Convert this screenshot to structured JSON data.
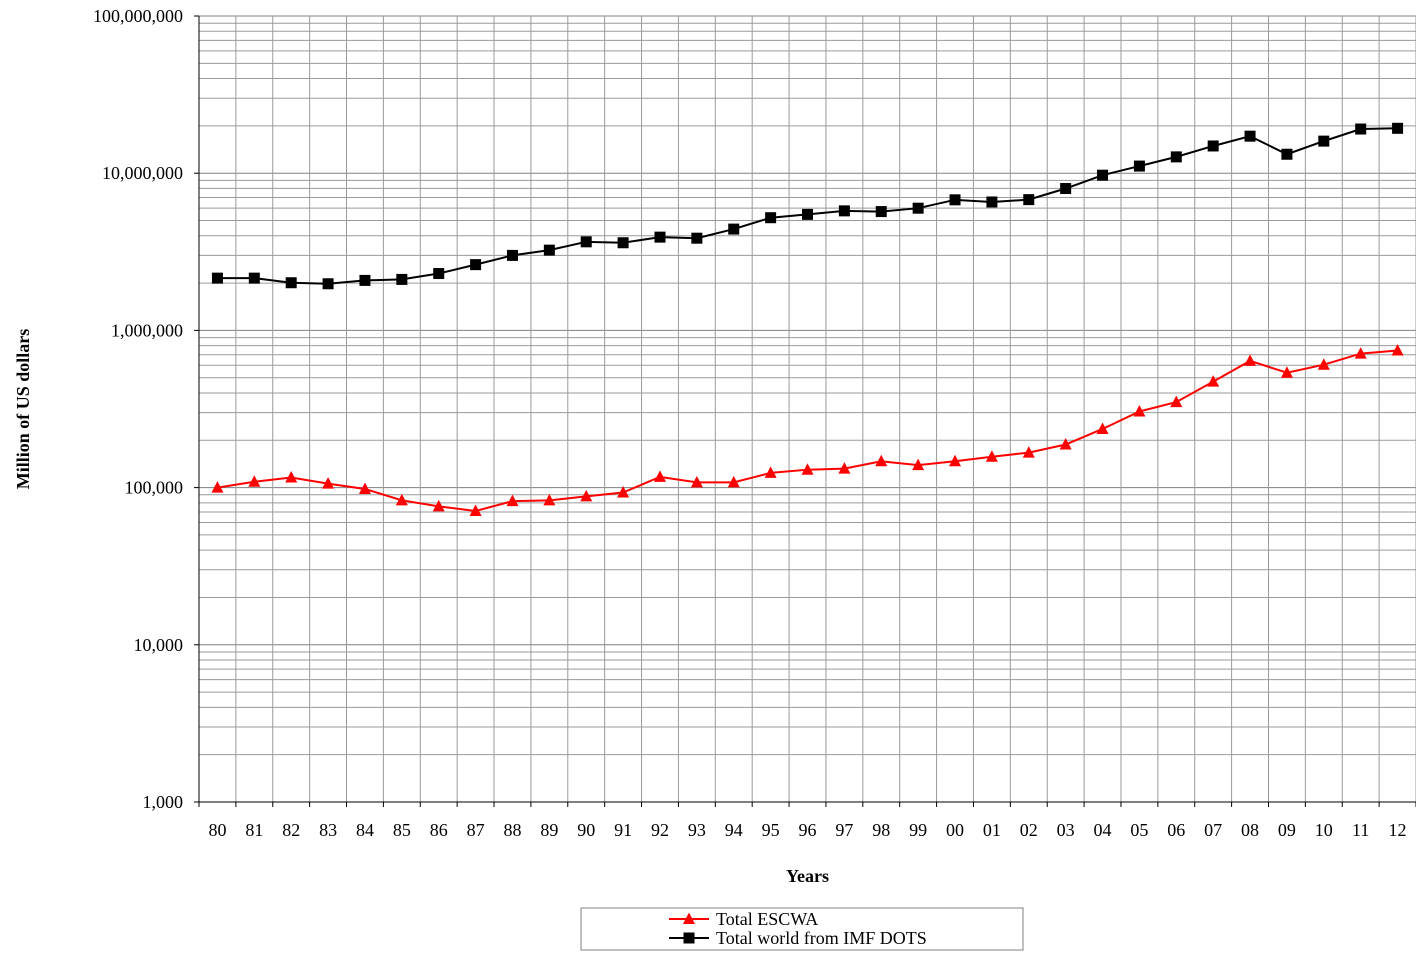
{
  "chart_data": {
    "type": "line",
    "title": "",
    "xlabel": "Years",
    "ylabel": "Million of US dollars",
    "yscale": "log",
    "ylim": [
      1000,
      100000000
    ],
    "grid": true,
    "legend_position": "bottom-center",
    "yticks": [
      "1,000",
      "10,000",
      "100,000",
      "1,000,000",
      "10,000,000",
      "100,000,000"
    ],
    "categories": [
      "80",
      "81",
      "82",
      "83",
      "84",
      "85",
      "86",
      "87",
      "88",
      "89",
      "90",
      "91",
      "92",
      "93",
      "94",
      "95",
      "96",
      "97",
      "98",
      "99",
      "00",
      "01",
      "02",
      "03",
      "04",
      "05",
      "06",
      "07",
      "08",
      "09",
      "10",
      "11",
      "12"
    ],
    "series": [
      {
        "name": "Total ESCWA",
        "color": "#ff0000",
        "marker": "triangle",
        "values": [
          100000,
          109000,
          116000,
          106000,
          98000,
          83000,
          76000,
          71000,
          82000,
          83000,
          88000,
          93000,
          117000,
          108000,
          108000,
          124000,
          130000,
          132000,
          147000,
          139000,
          147000,
          157000,
          167000,
          188000,
          236000,
          305000,
          350000,
          472000,
          640000,
          538000,
          605000,
          712000,
          745000
        ]
      },
      {
        "name": "Total world from IMF DOTS",
        "color": "#000000",
        "marker": "square",
        "values": [
          2150000,
          2150000,
          2010000,
          1980000,
          2080000,
          2110000,
          2300000,
          2620000,
          3000000,
          3240000,
          3660000,
          3610000,
          3920000,
          3860000,
          4410000,
          5210000,
          5470000,
          5760000,
          5700000,
          5990000,
          6770000,
          6560000,
          6790000,
          7990000,
          9710000,
          11100000,
          12700000,
          14900000,
          17200000,
          13200000,
          16000000,
          19100000,
          19300000
        ]
      }
    ]
  }
}
